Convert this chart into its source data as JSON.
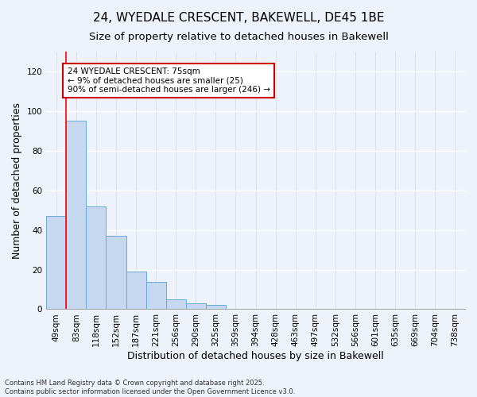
{
  "title": "24, WYEDALE CRESCENT, BAKEWELL, DE45 1BE",
  "subtitle": "Size of property relative to detached houses in Bakewell",
  "xlabel": "Distribution of detached houses by size in Bakewell",
  "ylabel": "Number of detached properties",
  "categories": [
    "49sqm",
    "83sqm",
    "118sqm",
    "152sqm",
    "187sqm",
    "221sqm",
    "256sqm",
    "290sqm",
    "325sqm",
    "359sqm",
    "394sqm",
    "428sqm",
    "463sqm",
    "497sqm",
    "532sqm",
    "566sqm",
    "601sqm",
    "635sqm",
    "669sqm",
    "704sqm",
    "738sqm"
  ],
  "values": [
    47,
    95,
    52,
    37,
    19,
    14,
    5,
    3,
    2,
    0,
    0,
    0,
    0,
    0,
    0,
    0,
    0,
    0,
    0,
    0,
    0
  ],
  "bar_color": "#c5d8f0",
  "bar_edge_color": "#6aaad4",
  "ylim": [
    0,
    130
  ],
  "yticks": [
    0,
    20,
    40,
    60,
    80,
    100,
    120
  ],
  "red_line_x": 0.5,
  "annotation_text": "24 WYEDALE CRESCENT: 75sqm\n← 9% of detached houses are smaller (25)\n90% of semi-detached houses are larger (246) →",
  "annotation_box_color": "#ffffff",
  "annotation_box_edge": "#cc0000",
  "footer_line1": "Contains HM Land Registry data © Crown copyright and database right 2025.",
  "footer_line2": "Contains public sector information licensed under the Open Government Licence v3.0.",
  "background_color": "#eef2fa",
  "title_fontsize": 11,
  "subtitle_fontsize": 9.5,
  "tick_fontsize": 7.5,
  "ylabel_fontsize": 9,
  "xlabel_fontsize": 9,
  "annotation_fontsize": 7.5,
  "footer_fontsize": 6
}
